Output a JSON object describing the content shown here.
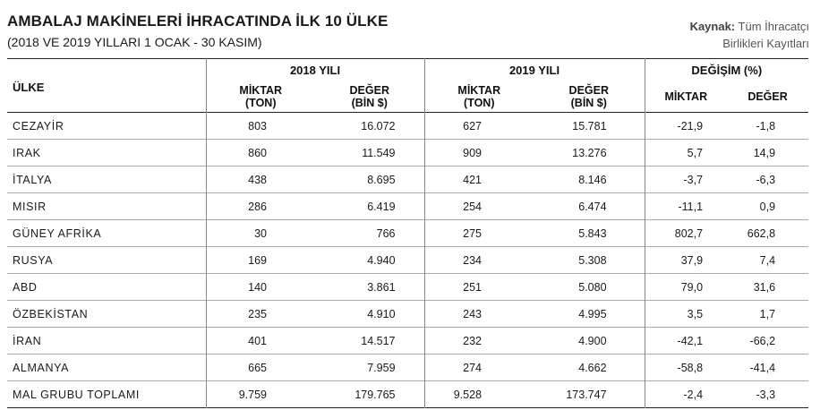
{
  "title": "AMBALAJ MAKİNELERİ İHRACATINDA İLK 10 ÜLKE",
  "subtitle": "(2018 VE 2019 YILLARI 1 OCAK - 30 KASIM)",
  "source": {
    "label": "Kaynak:",
    "line1": "Tüm İhracatçı",
    "line2": "Birlikleri Kayıtları"
  },
  "headers": {
    "country": "ÜLKE",
    "year2018": "2018 YILI",
    "year2019": "2019 YILI",
    "change": "DEĞİŞİM (%)",
    "qty_line1": "MİKTAR",
    "qty_line2": "(TON)",
    "val_line1": "DEĞER",
    "val_line2": "(BİN $)",
    "chg_qty": "MİKTAR",
    "chg_val": "DEĞER"
  },
  "rows": [
    {
      "country": "CEZAYİR",
      "q2018": "803",
      "v2018": "16.072",
      "q2019": "627",
      "v2019": "15.781",
      "cq": "-21,9",
      "cv": "-1,8"
    },
    {
      "country": "IRAK",
      "q2018": "860",
      "v2018": "11.549",
      "q2019": "909",
      "v2019": "13.276",
      "cq": "5,7",
      "cv": "14,9"
    },
    {
      "country": "İTALYA",
      "q2018": "438",
      "v2018": "8.695",
      "q2019": "421",
      "v2019": "8.146",
      "cq": "-3,7",
      "cv": "-6,3"
    },
    {
      "country": "MISIR",
      "q2018": "286",
      "v2018": "6.419",
      "q2019": "254",
      "v2019": "6.474",
      "cq": "-11,1",
      "cv": "0,9"
    },
    {
      "country": "GÜNEY AFRİKA",
      "q2018": "30",
      "v2018": "766",
      "q2019": "275",
      "v2019": "5.843",
      "cq": "802,7",
      "cv": "662,8"
    },
    {
      "country": "RUSYA",
      "q2018": "169",
      "v2018": "4.940",
      "q2019": "234",
      "v2019": "5.308",
      "cq": "37,9",
      "cv": "7,4"
    },
    {
      "country": "ABD",
      "q2018": "140",
      "v2018": "3.861",
      "q2019": "251",
      "v2019": "5.080",
      "cq": "79,0",
      "cv": "31,6"
    },
    {
      "country": "ÖZBEKİSTAN",
      "q2018": "235",
      "v2018": "4.910",
      "q2019": "243",
      "v2019": "4.995",
      "cq": "3,5",
      "cv": "1,7"
    },
    {
      "country": "İRAN",
      "q2018": "401",
      "v2018": "14.517",
      "q2019": "232",
      "v2019": "4.900",
      "cq": "-42,1",
      "cv": "-66,2"
    },
    {
      "country": "ALMANYA",
      "q2018": "665",
      "v2018": "7.959",
      "q2019": "274",
      "v2019": "4.662",
      "cq": "-58,8",
      "cv": "-41,4"
    },
    {
      "country": "MAL GRUBU TOPLAMI",
      "q2018": "9.759",
      "v2018": "179.765",
      "q2019": "9.528",
      "v2019": "173.747",
      "cq": "-2,4",
      "cv": "-3,3"
    }
  ]
}
